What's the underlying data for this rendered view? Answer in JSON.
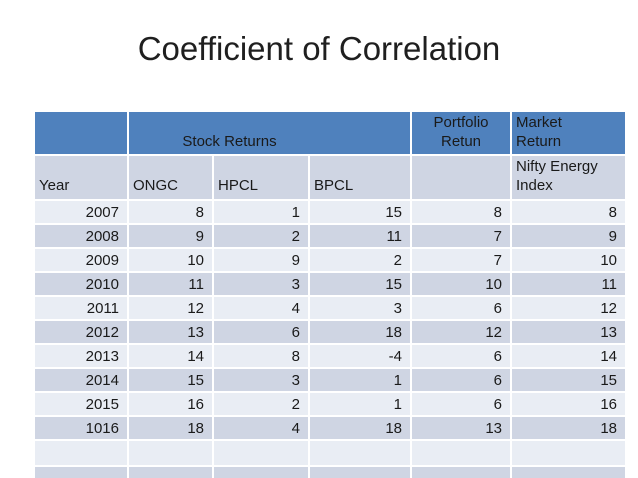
{
  "title": "Coefficient of Correlation",
  "table": {
    "top_header": {
      "stock_returns": "Stock Returns",
      "portfolio_return": "Portfolio\nRetun",
      "market_return": "Market\nReturn"
    },
    "column_header": {
      "year": "Year",
      "ongc": "ONGC",
      "hpcl": "HPCL",
      "bpcl": "BPCL",
      "nifty": "Nifty Energy\nIndex"
    },
    "rows": [
      {
        "year": "2007",
        "ongc": "8",
        "hpcl": "1",
        "bpcl": "15",
        "portfolio": "8",
        "market": "8"
      },
      {
        "year": "2008",
        "ongc": "9",
        "hpcl": "2",
        "bpcl": "11",
        "portfolio": "7",
        "market": "9"
      },
      {
        "year": "2009",
        "ongc": "10",
        "hpcl": "9",
        "bpcl": "2",
        "portfolio": "7",
        "market": "10"
      },
      {
        "year": "2010",
        "ongc": "11",
        "hpcl": "3",
        "bpcl": "15",
        "portfolio": "10",
        "market": "11"
      },
      {
        "year": "2011",
        "ongc": "12",
        "hpcl": "4",
        "bpcl": "3",
        "portfolio": "6",
        "market": "12"
      },
      {
        "year": "2012",
        "ongc": "13",
        "hpcl": "6",
        "bpcl": "18",
        "portfolio": "12",
        "market": "13"
      },
      {
        "year": "2013",
        "ongc": "14",
        "hpcl": "8",
        "bpcl": "-4",
        "portfolio": "6",
        "market": "14"
      },
      {
        "year": "2014",
        "ongc": "15",
        "hpcl": "3",
        "bpcl": "1",
        "portfolio": "6",
        "market": "15"
      },
      {
        "year": "2015",
        "ongc": "16",
        "hpcl": "2",
        "bpcl": "1",
        "portfolio": "6",
        "market": "16"
      },
      {
        "year": "1016",
        "ongc": "18",
        "hpcl": "4",
        "bpcl": "18",
        "portfolio": "13",
        "market": "18"
      }
    ]
  },
  "colors": {
    "header_blue": "#4F81BD",
    "band_light": "#E9EDF4",
    "band_dark": "#CFD5E3",
    "text": "#1A1A1A",
    "gridline": "#FFFFFF",
    "background": "#FFFFFF"
  }
}
